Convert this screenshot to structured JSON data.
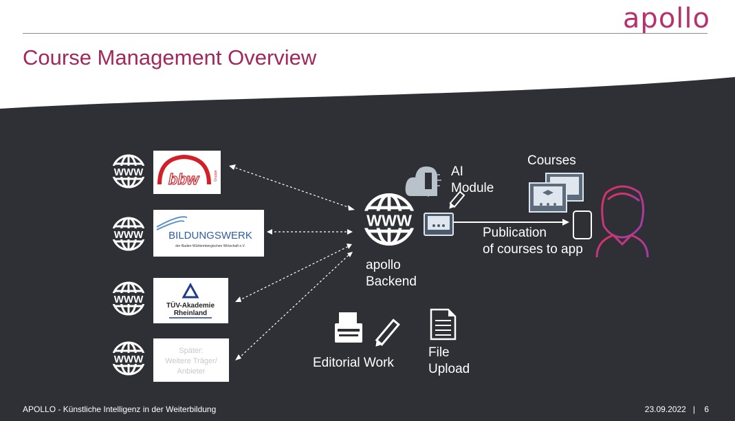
{
  "logo_text": "apollo",
  "title": "Course Management Overview",
  "partners": [
    {
      "name": "bbw Gruppe",
      "logo_text": "bbw",
      "logo_sub": "Gruppe"
    },
    {
      "name": "Bildungswerk",
      "logo_text": "BILDUNGSWERK",
      "logo_sub": "der Baden-Württembergischen Wirtschaft e.V."
    },
    {
      "name": "TÜV-Akademie Rheinland",
      "line1": "TÜV-Akademie",
      "line2": "Rheinland"
    },
    {
      "name": "Später: Weitere Träger/Anbieter",
      "line1": "Später:",
      "line2": "Weitere Träger/",
      "line3": "Anbieter"
    }
  ],
  "www_icon_text": "WWW",
  "backend": {
    "line1": "apollo",
    "line2": "Backend"
  },
  "ai_module": {
    "line1": "AI",
    "line2": "Module"
  },
  "courses_label": "Courses",
  "publication": {
    "line1": "Publication",
    "line2": "of courses to app"
  },
  "editorial_label": "Editorial Work",
  "file_upload": {
    "line1": "File",
    "line2": "Upload"
  },
  "footer": {
    "left": "APOLLO - Künstliche Intelligenz in der Weiterbildung",
    "date": "23.09.2022",
    "separator": "|",
    "page": "6"
  },
  "colors": {
    "brand": "#a0285a",
    "dark_bg": "#2f3036",
    "person_gradient_start": "#d6306a",
    "person_gradient_end": "#9b3fa8"
  },
  "icons": [
    "www-globe-icon",
    "cloud-ai-icon",
    "screen-icon",
    "pencil-icon",
    "presentation-icon",
    "smartphone-icon",
    "person-icon",
    "typewriter-icon",
    "document-icon"
  ]
}
